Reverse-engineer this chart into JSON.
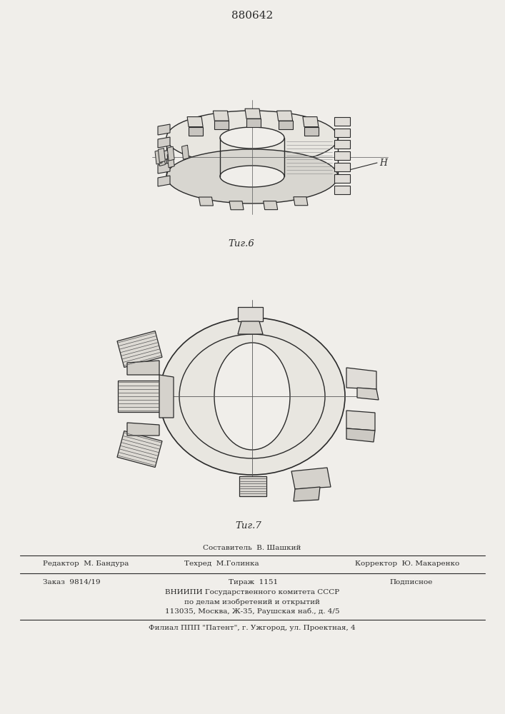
{
  "patent_number": "880642",
  "fig6_label": "Τиг.6",
  "fig7_label": "Τиг.7",
  "annotation_n": "H",
  "footer_composer": "Составитель  В. Шашкий",
  "footer_line1_left": "Редактор  М. Бандура",
  "footer_line1_mid": "Техред  М.Голинка",
  "footer_line1_right": "Корректор  Ю. Макаренко",
  "footer_zakaz": "Заказ  9814/19",
  "footer_tirazh": "Тираж  1151",
  "footer_podpisnoe": "Подписное",
  "footer_vniip1": "ВНИИПИ Государственного комитета СССР",
  "footer_vniip2": "по делам изобретений и открытий",
  "footer_vniip3": "113035, Москва, Ж-35, Раушская наб., д. 4/5",
  "footer_filial": "Филиал ППП \"Патент\", г. Ужгород, ул. Проектная, 4",
  "bg_color": "#f0eeea",
  "line_color": "#2a2a2a",
  "figsize": [
    7.07,
    10.0
  ],
  "dpi": 100
}
